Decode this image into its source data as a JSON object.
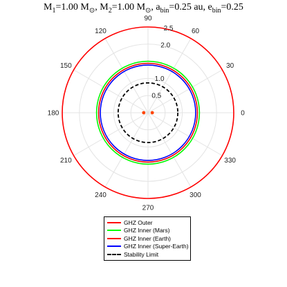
{
  "title": {
    "m1": "M",
    "m1_sub": "1",
    "m1_val": "=1.00 M",
    "m1_unit_sub": "⊙",
    "m2": ", M",
    "m2_sub": "2",
    "m2_val": "=1.00 M",
    "m2_unit_sub": "⊙",
    "a": ", a",
    "a_sub": "bin",
    "a_val": "=0.25 au",
    "e": ", e",
    "e_sub": "bin",
    "e_val": "=0.25"
  },
  "chart_data": {
    "type": "polar",
    "angular_ticks": [
      "0",
      "30",
      "60",
      "90",
      "120",
      "150",
      "180",
      "210",
      "240",
      "270",
      "300",
      "330"
    ],
    "angular_tick_values": [
      0,
      30,
      60,
      90,
      120,
      150,
      180,
      210,
      240,
      270,
      300,
      330
    ],
    "radial_ticks": [
      "0.5",
      "1.0",
      "2.0",
      "2.5"
    ],
    "radial_tick_values": [
      0.5,
      1.0,
      2.0,
      2.5
    ],
    "rlim": [
      0,
      2.5
    ],
    "grid": true,
    "legend_position": "bottom",
    "series": [
      {
        "name": "GHZ Outer",
        "color": "#ff0000",
        "style": "solid",
        "radius": 2.5
      },
      {
        "name": "GHZ Inner (Mars)",
        "color": "#00ff00",
        "style": "solid",
        "radius": 1.5
      },
      {
        "name": "GHZ Inner (Earth)",
        "color": "#ff0000",
        "style": "solid",
        "radius": 1.44
      },
      {
        "name": "GHZ Inner (Super-Earth)",
        "color": "#0000ff",
        "style": "solid",
        "radius": 1.39
      },
      {
        "name": "Stability Limit",
        "color": "#000000",
        "style": "dashed",
        "radius": 0.87
      }
    ],
    "stars": [
      {
        "r": 0.125,
        "theta": 180,
        "color": "#ff4500"
      },
      {
        "r": 0.125,
        "theta": 0,
        "color": "#ff4500"
      }
    ]
  }
}
